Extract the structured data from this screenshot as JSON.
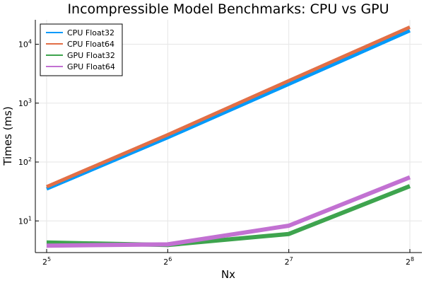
{
  "chart_data": {
    "type": "line",
    "title": "Incompressible Model Benchmarks: CPU vs GPU",
    "xlabel": "Nx",
    "ylabel": "Times (ms)",
    "x": [
      32,
      64,
      128,
      256
    ],
    "x_scale": "log2",
    "y_scale": "log10",
    "x_ticks": [
      {
        "value": 32,
        "base": "2",
        "exp": "5"
      },
      {
        "value": 64,
        "base": "2",
        "exp": "6"
      },
      {
        "value": 128,
        "base": "2",
        "exp": "7"
      },
      {
        "value": 256,
        "base": "2",
        "exp": "8"
      }
    ],
    "y_ticks": [
      {
        "value": 10,
        "base": "10",
        "exp": "1"
      },
      {
        "value": 100,
        "base": "10",
        "exp": "2"
      },
      {
        "value": 1000,
        "base": "10",
        "exp": "3"
      },
      {
        "value": 10000,
        "base": "10",
        "exp": "4"
      }
    ],
    "ylim": [
      2.9,
      26000
    ],
    "grid": true,
    "legend_position": "top-left",
    "series": [
      {
        "name": "CPU Float32",
        "color": "#009AFA",
        "values": [
          35,
          260,
          2100,
          17000
        ]
      },
      {
        "name": "CPU Float64",
        "color": "#E26F46",
        "values": [
          38,
          290,
          2400,
          19500
        ]
      },
      {
        "name": "GPU Float32",
        "color": "#3EA44E",
        "values": [
          4.3,
          3.9,
          6.0,
          39
        ]
      },
      {
        "name": "GPU Float64",
        "color": "#C271D2",
        "values": [
          3.8,
          4.0,
          8.3,
          55
        ]
      }
    ]
  }
}
